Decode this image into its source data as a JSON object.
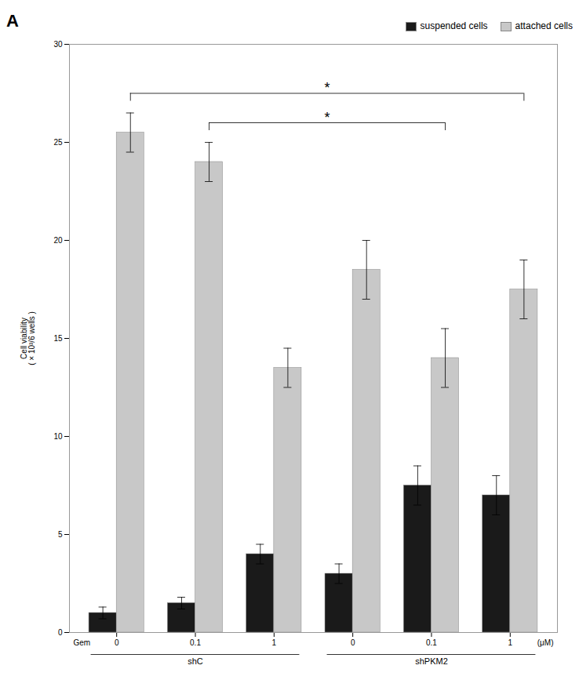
{
  "chart_data": {
    "type": "bar",
    "title": "A",
    "categories": [
      "0",
      "0.1",
      "1",
      "0",
      "0.1",
      "1"
    ],
    "series": [
      {
        "name": "suspended cells",
        "color": "#1a1a1a",
        "values": [
          1.0,
          1.5,
          4.0,
          3.0,
          7.5,
          7.0
        ],
        "errors": [
          0.3,
          0.3,
          0.5,
          0.5,
          1.0,
          1.0
        ]
      },
      {
        "name": "attached cells",
        "color": "#c8c8c8",
        "values": [
          25.5,
          24.0,
          13.5,
          18.5,
          14.0,
          17.5
        ],
        "errors": [
          1.0,
          1.0,
          1.0,
          1.5,
          1.5,
          1.5
        ]
      }
    ],
    "ylabel": "Cell viability\n( × 10³/6 wells )",
    "ylim": [
      0,
      30
    ],
    "yticks": [
      0,
      5,
      10,
      15,
      20,
      25,
      30
    ],
    "x_start_label": "Gem",
    "x_end_label": "(μM)",
    "groups": [
      {
        "name": "shC",
        "size": 3
      },
      {
        "name": "shPKM2",
        "size": 3
      }
    ],
    "annotations": [
      {
        "text": "*",
        "from": 0,
        "to": 5
      },
      {
        "text": "*",
        "from": 1,
        "to": 4
      }
    ],
    "legend": "upper right"
  }
}
